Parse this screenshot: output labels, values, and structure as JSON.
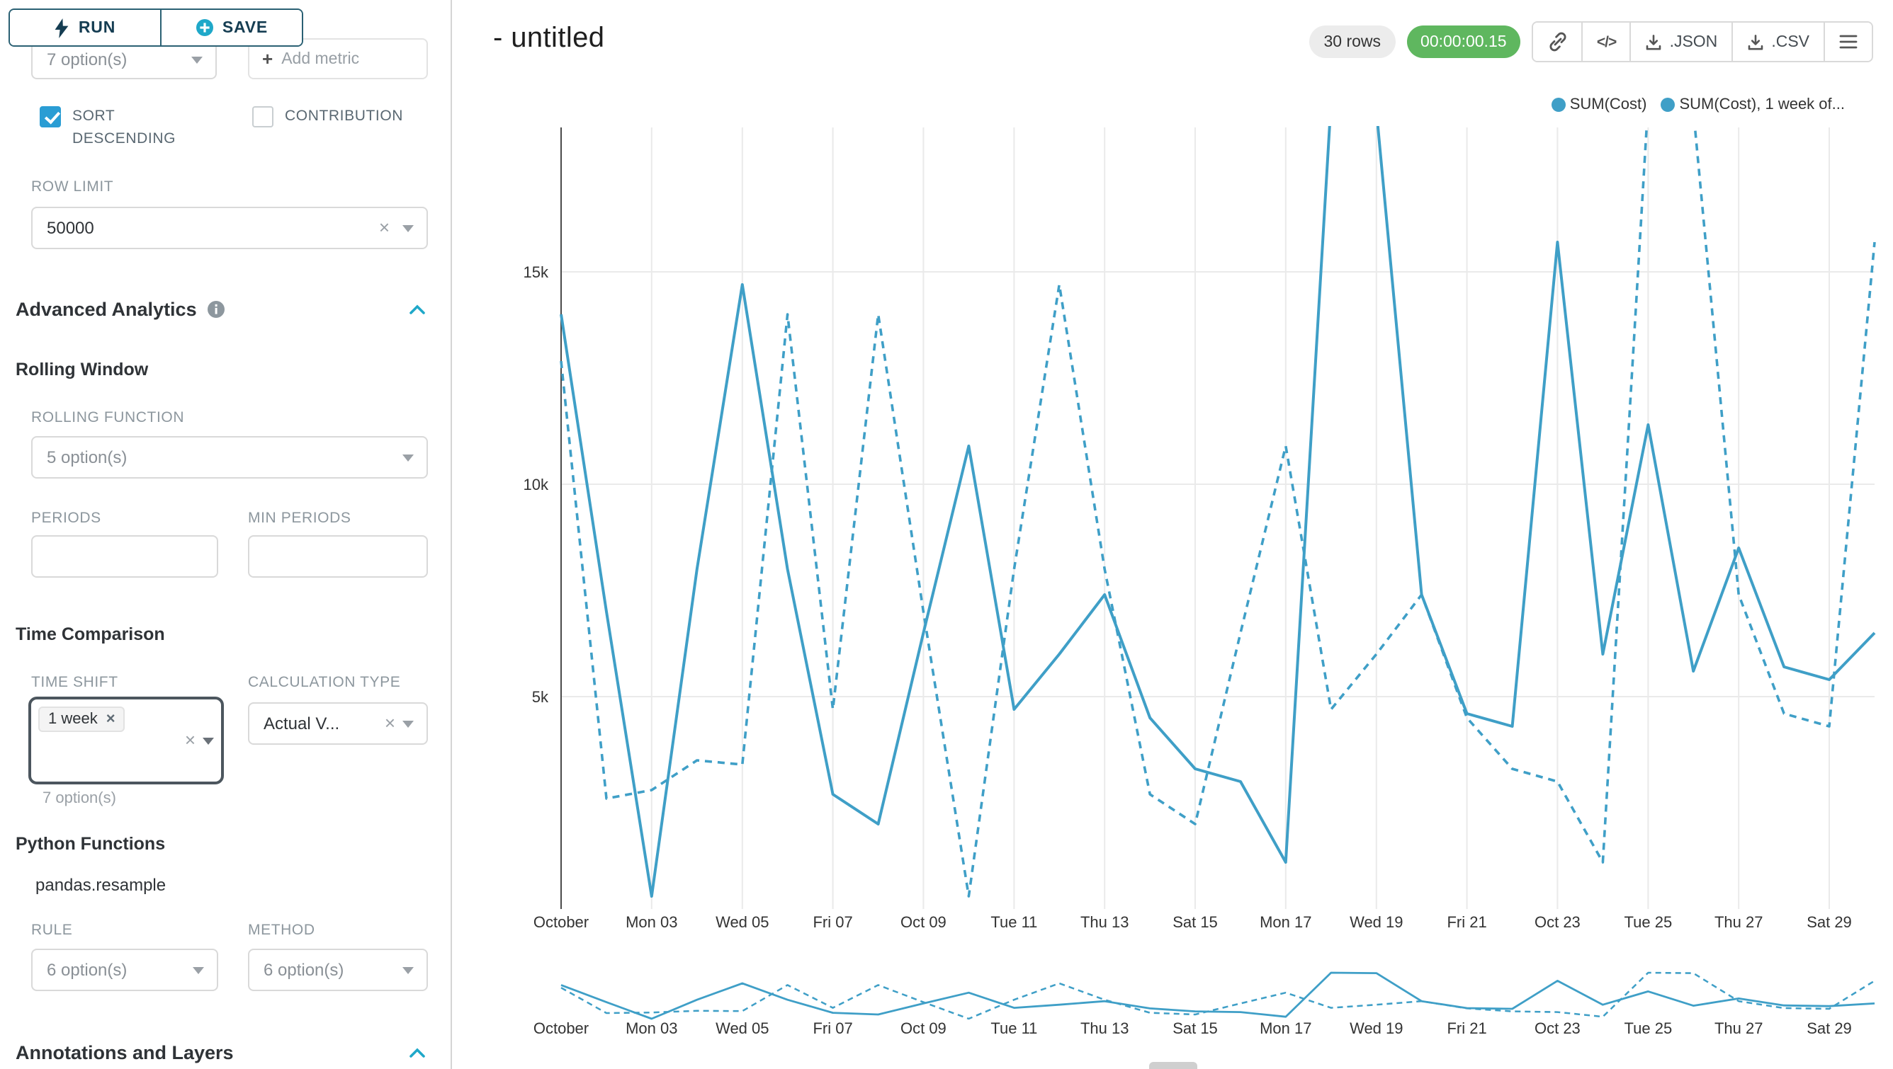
{
  "colors": {
    "accent": "#1fa8c9",
    "chart_line": "#3f9fc7",
    "success_badge": "#5fb75f",
    "checkbox_checked": "#2a9dd4"
  },
  "icons": {
    "clear_glyph": "×",
    "plus_glyph": "+",
    "code_glyph": "</>"
  },
  "sidebar": {
    "run_button": "RUN",
    "save_button": "SAVE",
    "metrics_select_value": "7 option(s)",
    "add_metric_label": "Add metric",
    "checkboxes": {
      "sort_descending": {
        "label": "SORT DESCENDING",
        "checked": true
      },
      "contribution": {
        "label": "CONTRIBUTION",
        "checked": false
      }
    },
    "row_limit": {
      "label": "ROW LIMIT",
      "value": "50000"
    },
    "advanced_analytics": {
      "title": "Advanced Analytics",
      "rolling_window": {
        "title": "Rolling Window",
        "function_label": "ROLLING FUNCTION",
        "function_value": "5 option(s)",
        "periods_label": "PERIODS",
        "min_periods_label": "MIN PERIODS"
      },
      "time_comparison": {
        "title": "Time Comparison",
        "time_shift_label": "TIME SHIFT",
        "time_shift_tag": "1 week",
        "time_shift_helper": "7 option(s)",
        "calculation_type_label": "CALCULATION TYPE",
        "calculation_type_value": "Actual V..."
      },
      "python_functions": {
        "title": "Python Functions",
        "function_name": "pandas.resample",
        "rule_label": "RULE",
        "rule_value": "6 option(s)",
        "method_label": "METHOD",
        "method_value": "6 option(s)"
      }
    },
    "annotations_section_title": "Annotations and Layers"
  },
  "header": {
    "title": "- untitled",
    "rows_badge": "30 rows",
    "timer_badge": "00:00:00.15",
    "json_button_label": ".JSON",
    "csv_button_label": ".CSV"
  },
  "chart_data": {
    "type": "line",
    "title": "",
    "line_color": "#3f9fc7",
    "legend_position": "top-right",
    "ylim": [
      0,
      18400
    ],
    "ytick_labels": [
      "5k",
      "10k",
      "15k"
    ],
    "ytick_values": [
      5000,
      10000,
      15000
    ],
    "x_days": [
      1,
      2,
      3,
      4,
      5,
      6,
      7,
      8,
      9,
      10,
      11,
      12,
      13,
      14,
      15,
      16,
      17,
      18,
      19,
      20,
      21,
      22,
      23,
      24,
      25,
      26,
      27,
      28,
      29,
      30
    ],
    "tick_days": [
      1,
      3,
      5,
      7,
      9,
      11,
      13,
      15,
      17,
      19,
      21,
      23,
      25,
      27,
      29
    ],
    "tick_labels": [
      "October",
      "Mon 03",
      "Wed 05",
      "Fri 07",
      "Oct 09",
      "Tue 11",
      "Thu 13",
      "Sat 15",
      "Mon 17",
      "Wed 19",
      "Fri 21",
      "Oct 23",
      "Tue 25",
      "Thu 27",
      "Sat 29"
    ],
    "series": [
      {
        "name": "SUM(Cost)",
        "style": "solid",
        "values": [
          14000,
          7000,
          300,
          8000,
          14700,
          8000,
          2700,
          2000,
          6500,
          10900,
          4700,
          6000,
          7400,
          4500,
          3300,
          3000,
          1100,
          19000,
          18800,
          7400,
          4600,
          4300,
          15700,
          6000,
          11400,
          5600,
          8500,
          5700,
          5400,
          6500
        ]
      },
      {
        "name": "SUM(Cost), 1 week of...",
        "style": "dashed",
        "values": [
          12900,
          2600,
          2800,
          3500,
          3400,
          14000,
          4700,
          14000,
          7000,
          300,
          8000,
          14700,
          8000,
          2700,
          2000,
          6500,
          10900,
          4700,
          6000,
          7400,
          4500,
          3300,
          3000,
          1100,
          19000,
          18800,
          7400,
          4600,
          4300,
          15700
        ]
      }
    ]
  }
}
